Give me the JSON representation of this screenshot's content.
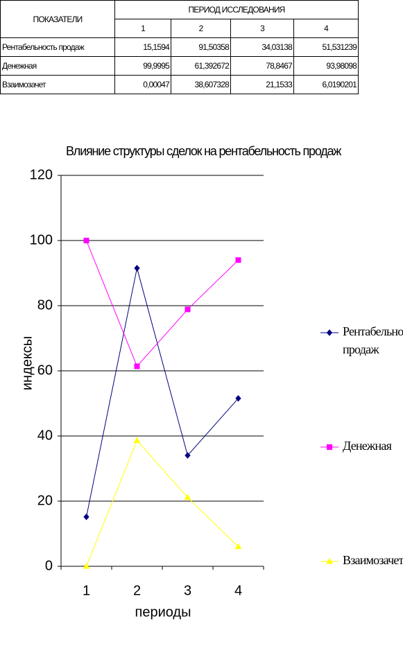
{
  "table": {
    "header": {
      "indicators": "ПОКАЗАТЕЛИ",
      "period": "ПЕРИОД ИССЛЕДОВАНИЯ",
      "periods": [
        "1",
        "2",
        "3",
        "4"
      ]
    },
    "rows": [
      [
        "Рентабельность продаж",
        "15,1594",
        "91,50358",
        "34,03138",
        "51,531239"
      ],
      [
        "Денежная",
        "99,9995",
        "61,392672",
        "78,8467",
        "93,98098"
      ],
      [
        "Взаимозачет",
        "0,00047",
        "38,607328",
        "21,1533",
        "6,0190201"
      ]
    ]
  },
  "chart_data": {
    "type": "line",
    "title": "Влияние структуры сделок на рентабельность продаж",
    "x_label": "периоды",
    "y_label": "индексы",
    "categories": [
      "1",
      "2",
      "3",
      "4"
    ],
    "series": [
      {
        "name": "Рентабельность продаж",
        "color": "#000080",
        "marker": "diamond",
        "values": [
          15.1594,
          91.50358,
          34.03138,
          51.531239
        ]
      },
      {
        "name": "Денежная",
        "color": "#ff00ff",
        "marker": "square",
        "values": [
          99.9995,
          61.392672,
          78.8467,
          93.98098
        ]
      },
      {
        "name": "Взаимозачет",
        "color": "#ffff00",
        "marker": "triangle",
        "values": [
          0.00047,
          38.607328,
          21.1533,
          6.0190201
        ]
      }
    ],
    "ylim": [
      0,
      120
    ],
    "yticks": [
      0,
      20,
      40,
      60,
      80,
      100,
      120
    ],
    "grid": true,
    "legend": "right"
  }
}
